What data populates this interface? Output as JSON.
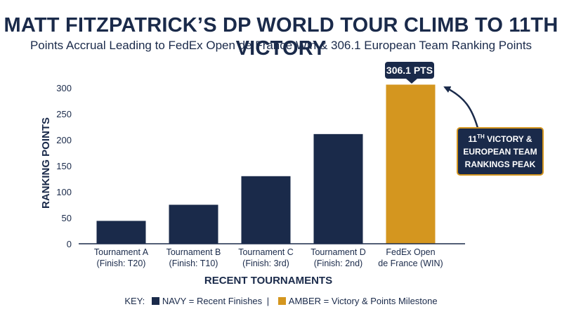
{
  "title": "MATT FITZPATRICK’S DP WORLD TOUR CLIMB TO 11TH VICTORY",
  "subtitle": "Points Accrual Leading to FedEx Open de France Win & 306.1 European Team Ranking Points",
  "colors": {
    "navy": "#1a2a4a",
    "amber": "#d4961f"
  },
  "chart_data": {
    "type": "bar",
    "categories": [
      [
        "Tournament A",
        "(Finish: T20)"
      ],
      [
        "Tournament B",
        "(Finish: T10)"
      ],
      [
        "Tournament C",
        "(Finish: 3rd)"
      ],
      [
        "Tournament D",
        "(Finish: 2nd)"
      ],
      [
        "FedEx Open",
        "de France (WIN)"
      ]
    ],
    "values": [
      44,
      75,
      130,
      211,
      306.1
    ],
    "bar_colors": [
      "navy",
      "navy",
      "navy",
      "navy",
      "amber"
    ],
    "ylabel": "RANKING POINTS",
    "xlabel": "RECENT TOURNAMENTS",
    "ylim": [
      0,
      300
    ],
    "yticks": [
      0,
      50,
      100,
      150,
      200,
      250,
      300
    ],
    "grid": false,
    "value_label": "306.1 PTS",
    "annotation": {
      "line1_pre": "11",
      "line1_sup": "TH",
      "line1_post": " VICTORY &",
      "line2": "EUROPEAN TEAM",
      "line3": "RANKINGS PEAK"
    }
  },
  "key": {
    "prefix": "KEY:",
    "navy_label": "NAVY = Recent Finishes",
    "separator": "|",
    "amber_label": "AMBER = Victory & Points Milestone"
  }
}
